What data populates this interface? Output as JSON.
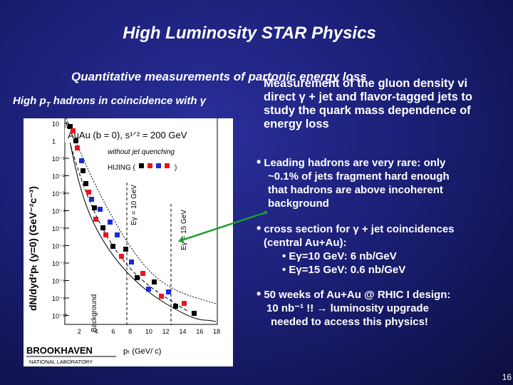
{
  "title": "High Luminosity STAR Physics",
  "subtitle": "Quantitative measurements of partonic energy loss",
  "left_heading": {
    "prefix": "High p",
    "sub": "T",
    "suffix": " hadrons in coincidence with γ"
  },
  "plot": {
    "ylabel": "dN/dyd²pₜ (y=0) (GeV⁻²c⁻³)",
    "xlabel": "pₜ (GeV/ c)",
    "system_label": "AuAu (b = 0), s¹ᐟ² = 200 GeV",
    "legend_label": "without jet quenching",
    "hijing_label": "HIJING (",
    "hijing_close": ")",
    "background_label": "Background",
    "egamma10_label": "Eγ = 10 GeV",
    "egamma15_label": "Eγ = 15 GeV",
    "x_ticks": [
      "2",
      "4",
      "6",
      "8",
      "10",
      "12",
      "14",
      "16",
      "18"
    ],
    "y_ticks": [
      "10",
      "1",
      "10⁻¹",
      "10⁻²",
      "10⁻³",
      "10⁻⁴",
      "10⁻⁵",
      "10⁻⁶",
      "10⁻⁷",
      "10⁻⁸",
      "10⁻⁹",
      "10⁻¹⁰"
    ]
  },
  "logo": {
    "name": "BROOKHAVEN",
    "sub": "NATIONAL LABORATORY"
  },
  "right_heading": {
    "line1": "Measurement of the gluon density vi",
    "line2": "direct γ + jet and flavor-tagged jets to",
    "line3": "study the quark mass dependence of",
    "line4": "energy loss"
  },
  "bullets": {
    "b1": {
      "l1": "Leading hadrons are very rare: only",
      "l2": "~0.1% of jets fragment hard enough",
      "l3": "that hadrons are above incoherent",
      "l4": "background"
    },
    "b2": {
      "l1": "cross section for γ + jet coincidences",
      "l2": "(central Au+Au):",
      "s1": "• Eγ=10 GeV: 6 nb/GeV",
      "s2": "• Eγ=15 GeV: 0.6 nb/GeV"
    },
    "b3": {
      "l1": "50 weeks of Au+Au @ RHIC I design:",
      "l2": "10 nb⁻¹ !! → luminosity upgrade",
      "l3": "needed to access this physics!"
    }
  },
  "page_number": "16",
  "colors": {
    "arrow": "#1aa02a",
    "series_black": "#000000",
    "series_red": "#e8141e",
    "series_blue": "#1a2ad8"
  }
}
